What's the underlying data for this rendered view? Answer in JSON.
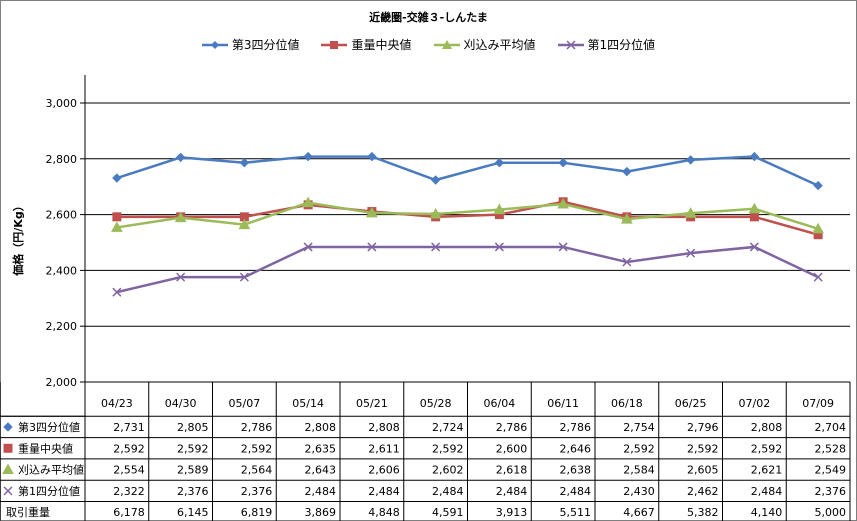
{
  "chart_data": {
    "type": "line",
    "title": "近畿圏-交雑３-しんたま",
    "ylabel": "価格（円/Kg）",
    "ylim": [
      2000,
      3000
    ],
    "yticks": [
      "2,000",
      "2,200",
      "2,400",
      "2,600",
      "2,800",
      "3,000"
    ],
    "grid": true,
    "legend_position": "top",
    "categories": [
      "04/23",
      "04/30",
      "05/07",
      "05/14",
      "05/21",
      "05/28",
      "06/04",
      "06/11",
      "06/18",
      "06/25",
      "07/02",
      "07/09"
    ],
    "series": [
      {
        "name": "第3四分位値",
        "color": "#4a7bc1",
        "marker": "diamond",
        "values": [
          2731,
          2805,
          2786,
          2808,
          2808,
          2724,
          2786,
          2786,
          2754,
          2796,
          2808,
          2704
        ],
        "labels": [
          "2,731",
          "2,805",
          "2,786",
          "2,808",
          "2,808",
          "2,724",
          "2,786",
          "2,786",
          "2,754",
          "2,796",
          "2,808",
          "2,704"
        ]
      },
      {
        "name": "重量中央値",
        "color": "#c0504d",
        "marker": "square",
        "values": [
          2592,
          2592,
          2592,
          2635,
          2611,
          2592,
          2600,
          2646,
          2592,
          2592,
          2592,
          2528
        ],
        "labels": [
          "2,592",
          "2,592",
          "2,592",
          "2,635",
          "2,611",
          "2,592",
          "2,600",
          "2,646",
          "2,592",
          "2,592",
          "2,592",
          "2,528"
        ]
      },
      {
        "name": "刈込み平均値",
        "color": "#9bbb59",
        "marker": "triangle",
        "values": [
          2554,
          2589,
          2564,
          2643,
          2606,
          2602,
          2618,
          2638,
          2584,
          2605,
          2621,
          2549
        ],
        "labels": [
          "2,554",
          "2,589",
          "2,564",
          "2,643",
          "2,606",
          "2,602",
          "2,618",
          "2,638",
          "2,584",
          "2,605",
          "2,621",
          "2,549"
        ]
      },
      {
        "name": "第1四分位値",
        "color": "#8064a2",
        "marker": "x",
        "values": [
          2322,
          2376,
          2376,
          2484,
          2484,
          2484,
          2484,
          2484,
          2430,
          2462,
          2484,
          2376
        ],
        "labels": [
          "2,322",
          "2,376",
          "2,376",
          "2,484",
          "2,484",
          "2,484",
          "2,484",
          "2,484",
          "2,430",
          "2,462",
          "2,484",
          "2,376"
        ]
      }
    ],
    "extra_row": {
      "name": "取引重量",
      "values": [
        "6,178",
        "6,145",
        "6,819",
        "3,869",
        "4,848",
        "4,591",
        "3,913",
        "5,511",
        "4,667",
        "5,382",
        "4,140",
        "5,000"
      ]
    }
  }
}
